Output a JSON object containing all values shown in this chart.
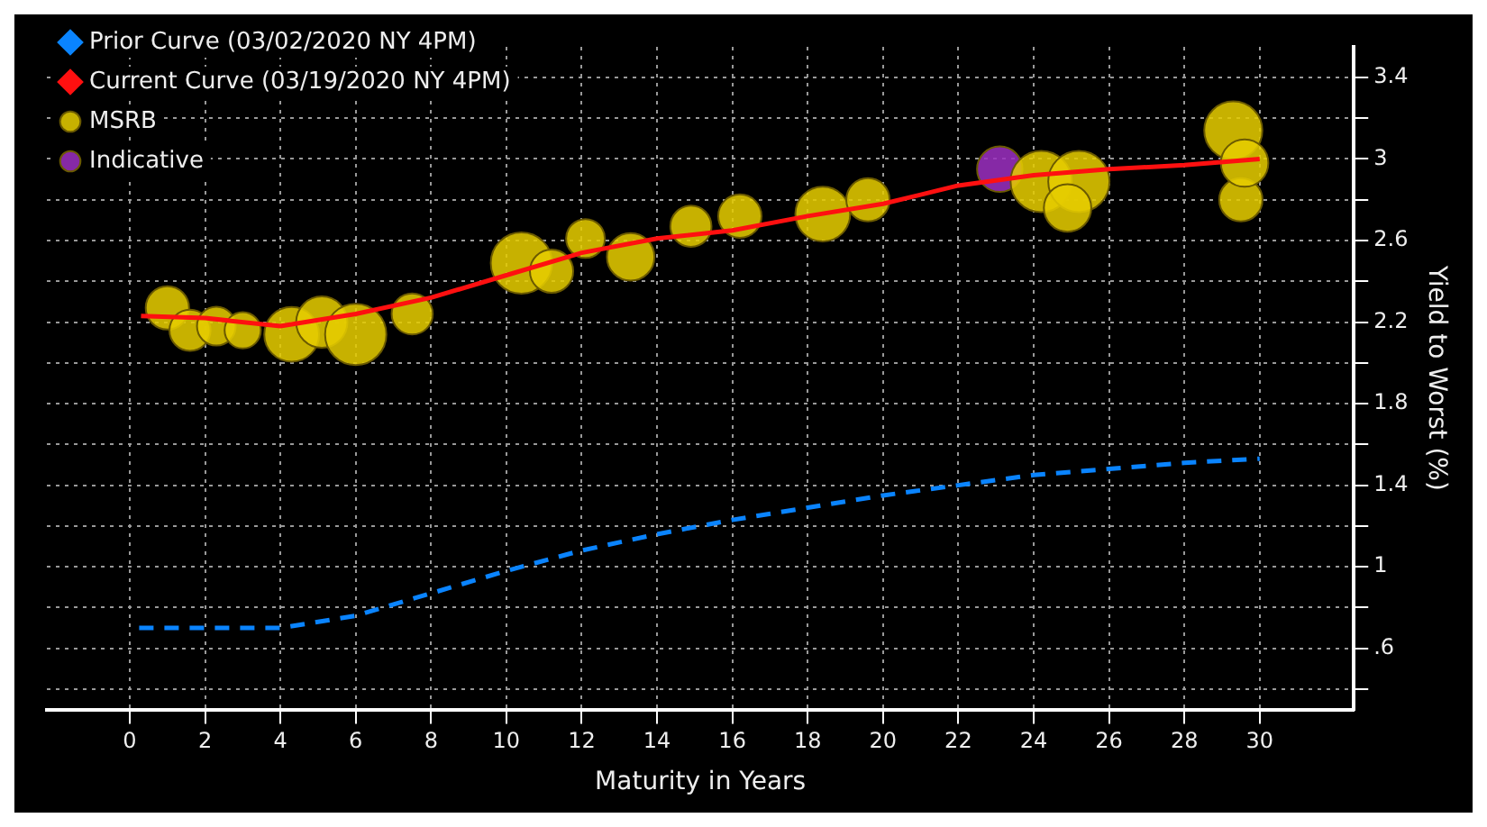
{
  "chart_data": {
    "type": "line",
    "xlabel": "Maturity in Years",
    "ylabel": "Yield to Worst (%)",
    "xlim": [
      -2.2,
      32.5
    ],
    "xticks": [
      0,
      2,
      4,
      6,
      8,
      10,
      12,
      14,
      16,
      18,
      20,
      22,
      24,
      26,
      28,
      30
    ],
    "ylim": [
      0.3,
      3.55
    ],
    "yticks": [
      {
        "value": 0.4,
        "label": null
      },
      {
        "value": 0.6,
        "label": ".6"
      },
      {
        "value": 0.8,
        "label": null
      },
      1,
      {
        "value": 1.2,
        "label": null
      },
      1.4,
      {
        "value": 1.6,
        "label": null
      },
      1.8,
      {
        "value": 2.0,
        "label": null
      },
      2.2,
      {
        "value": 2.4,
        "label": null
      },
      2.6,
      {
        "value": 2.8,
        "label": null
      },
      3,
      {
        "value": 3.2,
        "label": null
      },
      3.4
    ],
    "grid": true,
    "legend": "top left",
    "series": [
      {
        "name": "Prior Curve (03/02/2020 NY 4PM)",
        "line_style": "dashed",
        "color": "#0a84ff",
        "x": [
          0.25,
          2,
          4,
          6,
          8,
          10,
          12,
          14,
          16,
          18,
          20,
          22,
          24,
          26,
          28,
          30
        ],
        "values": [
          0.7,
          0.7,
          0.7,
          0.76,
          0.87,
          0.98,
          1.08,
          1.16,
          1.23,
          1.29,
          1.35,
          1.4,
          1.45,
          1.48,
          1.51,
          1.53
        ]
      },
      {
        "name": "Current Curve (03/19/2020 NY 4PM)",
        "line_style": "solid",
        "color": "#ff1010",
        "x": [
          0.3,
          2,
          4,
          6,
          8,
          10,
          12,
          14,
          16,
          18,
          20,
          22,
          24,
          26,
          28,
          30
        ],
        "values": [
          2.23,
          2.22,
          2.18,
          2.24,
          2.32,
          2.43,
          2.54,
          2.61,
          2.65,
          2.72,
          2.78,
          2.87,
          2.92,
          2.95,
          2.97,
          3.0
        ]
      },
      {
        "name": "MSRB",
        "type": "bubble",
        "color": "#e6cc00",
        "x": [
          1.0,
          1.6,
          2.3,
          3.0,
          4.3,
          5.1,
          6.0,
          7.5,
          10.4,
          11.2,
          12.1,
          13.3,
          14.9,
          16.2,
          18.4,
          19.6,
          24.2,
          25.2,
          24.9,
          29.3,
          29.5,
          29.6
        ],
        "values": [
          2.27,
          2.16,
          2.18,
          2.16,
          2.14,
          2.2,
          2.14,
          2.24,
          2.49,
          2.45,
          2.61,
          2.52,
          2.67,
          2.72,
          2.73,
          2.8,
          2.89,
          2.89,
          2.76,
          3.14,
          2.8,
          2.98
        ],
        "sizes": [
          0.5,
          0.45,
          0.4,
          0.35,
          0.8,
          0.7,
          1,
          0.45,
          1,
          0.5,
          0.4,
          0.6,
          0.45,
          0.5,
          0.8,
          0.5,
          1,
          1,
          0.6,
          0.9,
          0.5,
          0.6
        ]
      },
      {
        "name": "Indicative",
        "type": "bubble",
        "color": "#9b2fc0",
        "x": [
          23.1
        ],
        "values": [
          2.95
        ],
        "sizes": [
          0.55
        ]
      }
    ]
  }
}
